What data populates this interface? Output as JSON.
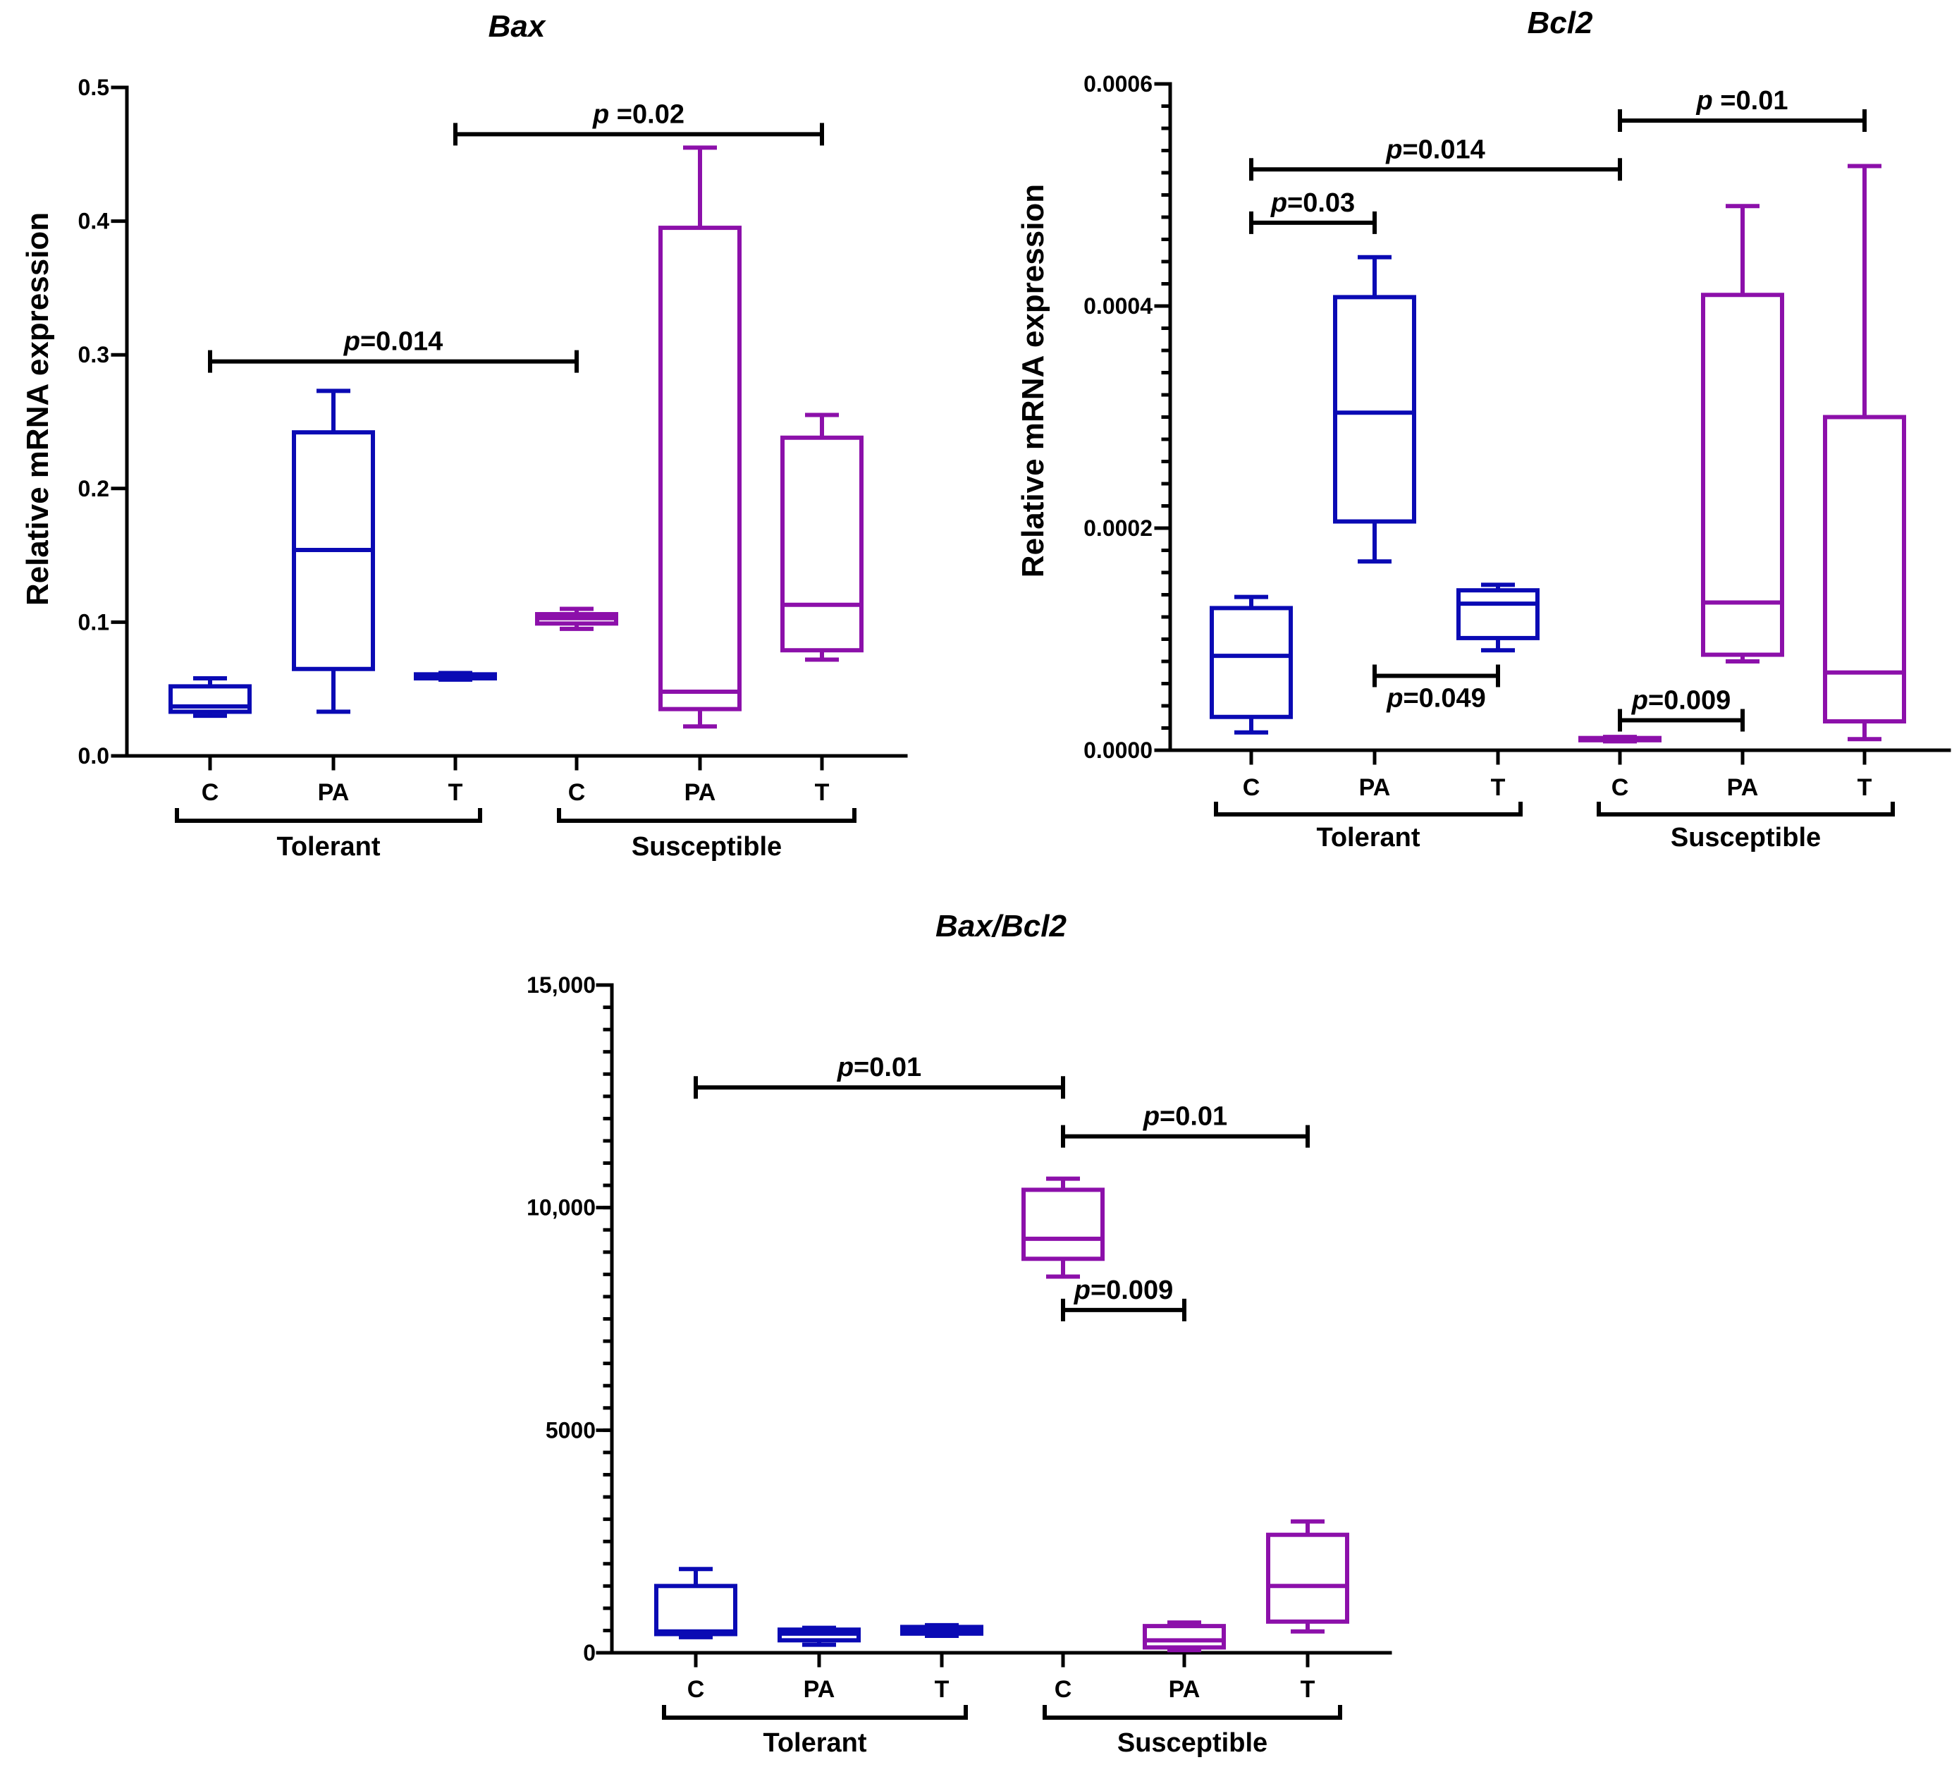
{
  "colors": {
    "tolerant": "#0a0ab4",
    "susceptible": "#8c10aa",
    "axis": "#000000"
  },
  "chart_data": [
    {
      "type": "box",
      "title": "Bax",
      "ylabel": "Relative mRNA expression",
      "xlabel": "",
      "ylim": [
        0,
        0.5
      ],
      "yticks": [
        0.0,
        0.1,
        0.2,
        0.3,
        0.4,
        0.5
      ],
      "ytick_labels": [
        "0.0",
        "0.1",
        "0.2",
        "0.3",
        "0.4",
        "0.5"
      ],
      "categories": [
        "C",
        "PA",
        "T",
        "C",
        "PA",
        "T"
      ],
      "groups": [
        {
          "label": "Tolerant",
          "categories": [
            0,
            1,
            2
          ],
          "color_key": "tolerant"
        },
        {
          "label": "Susceptible",
          "categories": [
            3,
            4,
            5
          ],
          "color_key": "susceptible"
        }
      ],
      "boxes": [
        {
          "category": "C",
          "group": "Tolerant",
          "min": 0.03,
          "q1": 0.033,
          "median": 0.037,
          "q3": 0.052,
          "max": 0.058
        },
        {
          "category": "PA",
          "group": "Tolerant",
          "min": 0.033,
          "q1": 0.065,
          "median": 0.154,
          "q3": 0.242,
          "max": 0.273
        },
        {
          "category": "T",
          "group": "Tolerant",
          "min": 0.057,
          "q1": 0.058,
          "median": 0.059,
          "q3": 0.061,
          "max": 0.062
        },
        {
          "category": "C",
          "group": "Susceptible",
          "min": 0.095,
          "q1": 0.099,
          "median": 0.103,
          "q3": 0.106,
          "max": 0.11
        },
        {
          "category": "PA",
          "group": "Susceptible",
          "min": 0.022,
          "q1": 0.035,
          "median": 0.048,
          "q3": 0.395,
          "max": 0.455
        },
        {
          "category": "T",
          "group": "Susceptible",
          "min": 0.072,
          "q1": 0.079,
          "median": 0.113,
          "q3": 0.238,
          "max": 0.255
        }
      ],
      "comparisons": [
        {
          "from": 0,
          "to": 3,
          "y": 0.295,
          "label_prefix": "p",
          "label_value": "=0.014"
        },
        {
          "from": 2,
          "to": 5,
          "y": 0.465,
          "label_prefix": "p",
          "label_value": " =0.02"
        }
      ]
    },
    {
      "type": "box",
      "title": "Bcl2",
      "ylabel": "Relative mRNA expression",
      "xlabel": "",
      "ylim": [
        0,
        0.0006
      ],
      "yticks": [
        0.0,
        0.0002,
        0.0004,
        0.0006
      ],
      "ytick_labels": [
        "0.0000",
        "0.0002",
        "0.0004",
        "0.0006"
      ],
      "categories": [
        "C",
        "PA",
        "T",
        "C",
        "PA",
        "T"
      ],
      "groups": [
        {
          "label": "Tolerant",
          "categories": [
            0,
            1,
            2
          ],
          "color_key": "tolerant"
        },
        {
          "label": "Susceptible",
          "categories": [
            3,
            4,
            5
          ],
          "color_key": "susceptible"
        }
      ],
      "boxes": [
        {
          "category": "C",
          "group": "Tolerant",
          "min": 1.6e-05,
          "q1": 3e-05,
          "median": 8.5e-05,
          "q3": 0.000128,
          "max": 0.000138
        },
        {
          "category": "PA",
          "group": "Tolerant",
          "min": 0.00017,
          "q1": 0.000206,
          "median": 0.000304,
          "q3": 0.000408,
          "max": 0.000444
        },
        {
          "category": "T",
          "group": "Tolerant",
          "min": 9e-05,
          "q1": 0.000101,
          "median": 0.000132,
          "q3": 0.000144,
          "max": 0.000149
        },
        {
          "category": "C",
          "group": "Susceptible",
          "min": 8e-06,
          "q1": 9e-06,
          "median": 1e-05,
          "q3": 1.1e-05,
          "max": 1.2e-05
        },
        {
          "category": "PA",
          "group": "Susceptible",
          "min": 8e-05,
          "q1": 8.6e-05,
          "median": 0.000133,
          "q3": 0.00041,
          "max": 0.00049
        },
        {
          "category": "T",
          "group": "Susceptible",
          "min": 1e-05,
          "q1": 2.6e-05,
          "median": 7e-05,
          "q3": 0.0003,
          "max": 0.000526
        }
      ],
      "comparisons": [
        {
          "from": 0,
          "to": 1,
          "y": 0.000475,
          "label_prefix": "p",
          "label_value": "=0.03"
        },
        {
          "from": 0,
          "to": 3,
          "y": 0.000523,
          "label_prefix": "p",
          "label_value": "=0.014"
        },
        {
          "from": 3,
          "to": 5,
          "y": 0.000567,
          "label_prefix": "p",
          "label_value": " =0.01"
        },
        {
          "from": 1,
          "to": 2,
          "y": 6.7e-05,
          "label_prefix": "p",
          "label_value": "=0.049",
          "label_below": true
        },
        {
          "from": 3,
          "to": 4,
          "y": 2.7e-05,
          "label_prefix": "p",
          "label_value": "=0.009"
        }
      ]
    },
    {
      "type": "box",
      "title": "Bax/Bcl2",
      "ylabel": "",
      "xlabel": "",
      "ylim": [
        0,
        15000
      ],
      "yticks": [
        0,
        5000,
        10000,
        15000
      ],
      "ytick_labels": [
        "0",
        "5000",
        "10,000",
        "15,000"
      ],
      "categories": [
        "C",
        "PA",
        "T",
        "C",
        "PA",
        "T"
      ],
      "groups": [
        {
          "label": "Tolerant",
          "categories": [
            0,
            1,
            2
          ],
          "color_key": "tolerant"
        },
        {
          "label": "Susceptible",
          "categories": [
            3,
            4,
            5
          ],
          "color_key": "susceptible"
        }
      ],
      "boxes": [
        {
          "category": "C",
          "group": "Tolerant",
          "min": 350,
          "q1": 420,
          "median": 480,
          "q3": 1500,
          "max": 1880
        },
        {
          "category": "PA",
          "group": "Tolerant",
          "min": 180,
          "q1": 280,
          "median": 430,
          "q3": 520,
          "max": 560
        },
        {
          "category": "T",
          "group": "Tolerant",
          "min": 380,
          "q1": 430,
          "median": 510,
          "q3": 580,
          "max": 620
        },
        {
          "category": "C",
          "group": "Susceptible",
          "min": 8450,
          "q1": 8850,
          "median": 9300,
          "q3": 10400,
          "max": 10650
        },
        {
          "category": "PA",
          "group": "Susceptible",
          "min": 60,
          "q1": 120,
          "median": 280,
          "q3": 600,
          "max": 680
        },
        {
          "category": "T",
          "group": "Susceptible",
          "min": 480,
          "q1": 700,
          "median": 1500,
          "q3": 2650,
          "max": 2950
        }
      ],
      "comparisons": [
        {
          "from": 0,
          "to": 3,
          "y": 12700,
          "label_prefix": "p",
          "label_value": "=0.01"
        },
        {
          "from": 3,
          "to": 5,
          "y": 11600,
          "label_prefix": "p",
          "label_value": "=0.01"
        },
        {
          "from": 3,
          "to": 4,
          "y": 7700,
          "label_prefix": "p",
          "label_value": "=0.009"
        }
      ]
    }
  ]
}
